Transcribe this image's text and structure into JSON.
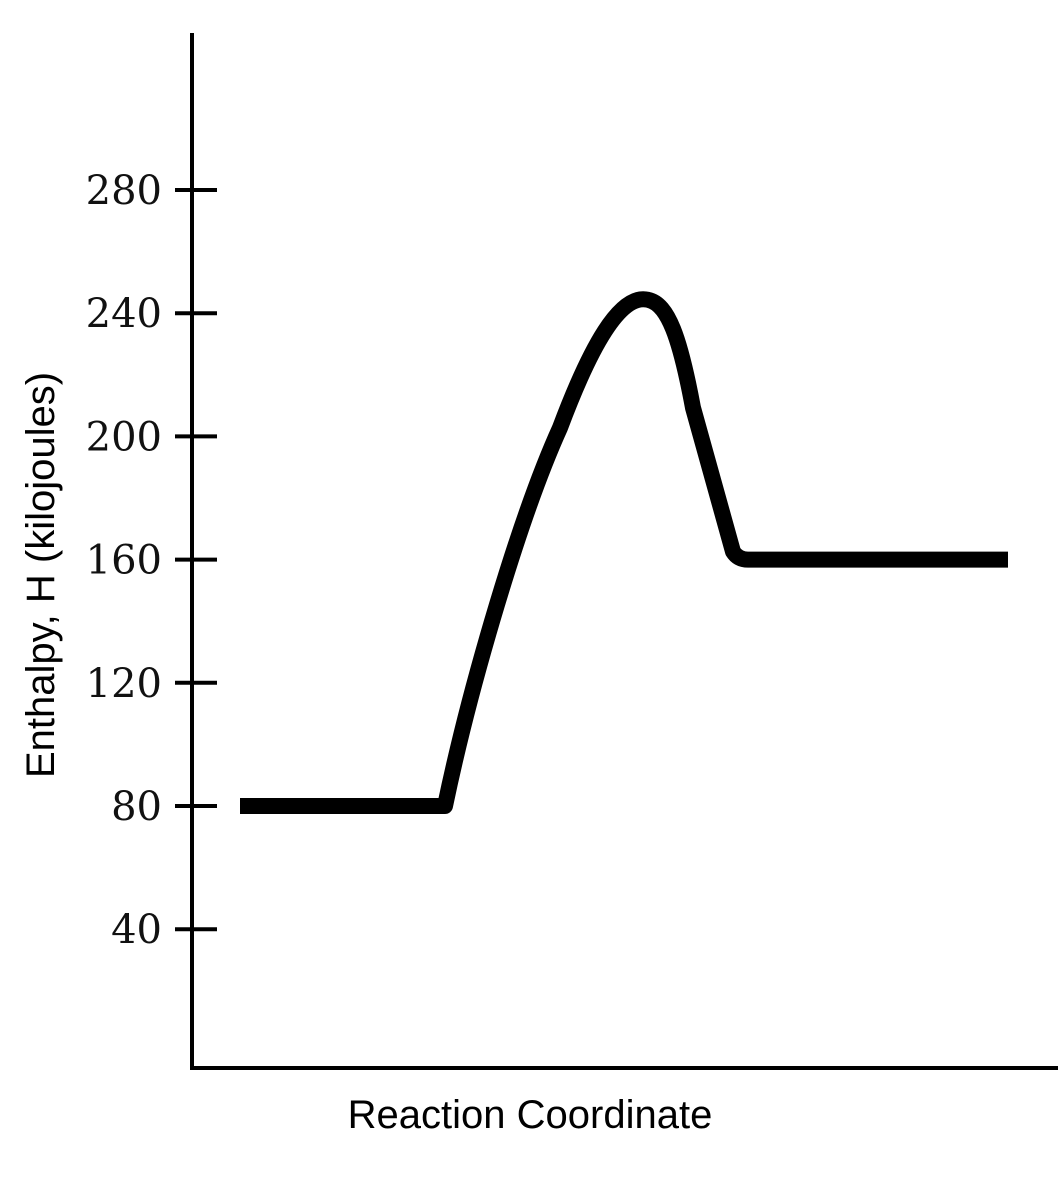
{
  "chart_data": {
    "type": "line",
    "title": "",
    "xlabel": "Reaction Coordinate",
    "ylabel": "Enthalpy, H (kilojoules)",
    "ylim": [
      0,
      340
    ],
    "yticks": [
      40,
      80,
      120,
      160,
      200,
      240,
      280
    ],
    "grid": false,
    "legend": "none",
    "x_ticks_shown": false,
    "line_color": "#000000",
    "series": [
      {
        "values_description_free": true,
        "reactants_enthalpy": 80,
        "peak_enthalpy": 245,
        "products_enthalpy": 160
      }
    ]
  }
}
